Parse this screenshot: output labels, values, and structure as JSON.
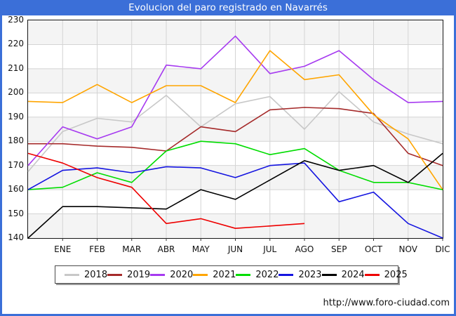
{
  "window": {
    "title": "Evolucion del paro registrado en Navarrés",
    "footer_url": "http://www.foro-ciudad.com"
  },
  "chart_data": {
    "type": "line",
    "title": "Evolucion del paro registrado en Navarrés",
    "xlabel": "",
    "ylabel": "",
    "ylim": [
      140,
      230
    ],
    "y_ticks": [
      230,
      220,
      210,
      200,
      190,
      180,
      170,
      160,
      150,
      140
    ],
    "categories": [
      "ENE",
      "FEB",
      "MAR",
      "ABR",
      "MAY",
      "JUN",
      "JUL",
      "AGO",
      "SEP",
      "OCT",
      "NOV",
      "DIC"
    ],
    "grid": true,
    "legend_position": "bottom",
    "accent_blue": "#3b6fd8",
    "note_axis_start": "each line begins at the left axis with the previous December value",
    "series": [
      {
        "name": "2018",
        "color": "#c8c8c8",
        "start": 167.5,
        "values": [
          184,
          189.5,
          188,
          199,
          186,
          195.5,
          198.5,
          185,
          200.5,
          188,
          183,
          179
        ]
      },
      {
        "name": "2019",
        "color": "#a52a2a",
        "start": 179,
        "values": [
          179,
          178,
          177.5,
          176,
          186,
          184,
          193,
          194,
          193.5,
          191.5,
          175,
          170
        ]
      },
      {
        "name": "2020",
        "color": "#a63af0",
        "start": 170,
        "values": [
          186,
          181,
          186,
          211.5,
          210,
          223.5,
          208,
          211,
          217.5,
          205.5,
          196,
          196.5
        ]
      },
      {
        "name": "2021",
        "color": "#ffa500",
        "start": 196.5,
        "values": [
          196,
          203.5,
          196,
          203,
          203,
          196,
          217.5,
          205.5,
          207.5,
          191,
          181,
          160
        ]
      },
      {
        "name": "2022",
        "color": "#00dd00",
        "start": 160,
        "values": [
          161,
          167,
          163,
          176,
          180,
          179,
          174.5,
          177,
          168,
          163,
          163,
          160
        ]
      },
      {
        "name": "2023",
        "color": "#1414e0",
        "start": 160,
        "values": [
          168,
          169,
          167,
          169.5,
          169,
          165,
          170,
          171,
          155,
          159,
          146,
          140
        ]
      },
      {
        "name": "2024",
        "color": "#000000",
        "start": 140,
        "values": [
          153,
          153,
          152.5,
          152,
          160,
          156,
          164,
          172,
          168,
          170,
          163,
          175
        ]
      },
      {
        "name": "2025",
        "color": "#ee0000",
        "start": 175,
        "values": [
          171,
          165,
          161,
          146,
          148,
          144,
          145,
          146
        ]
      }
    ]
  }
}
